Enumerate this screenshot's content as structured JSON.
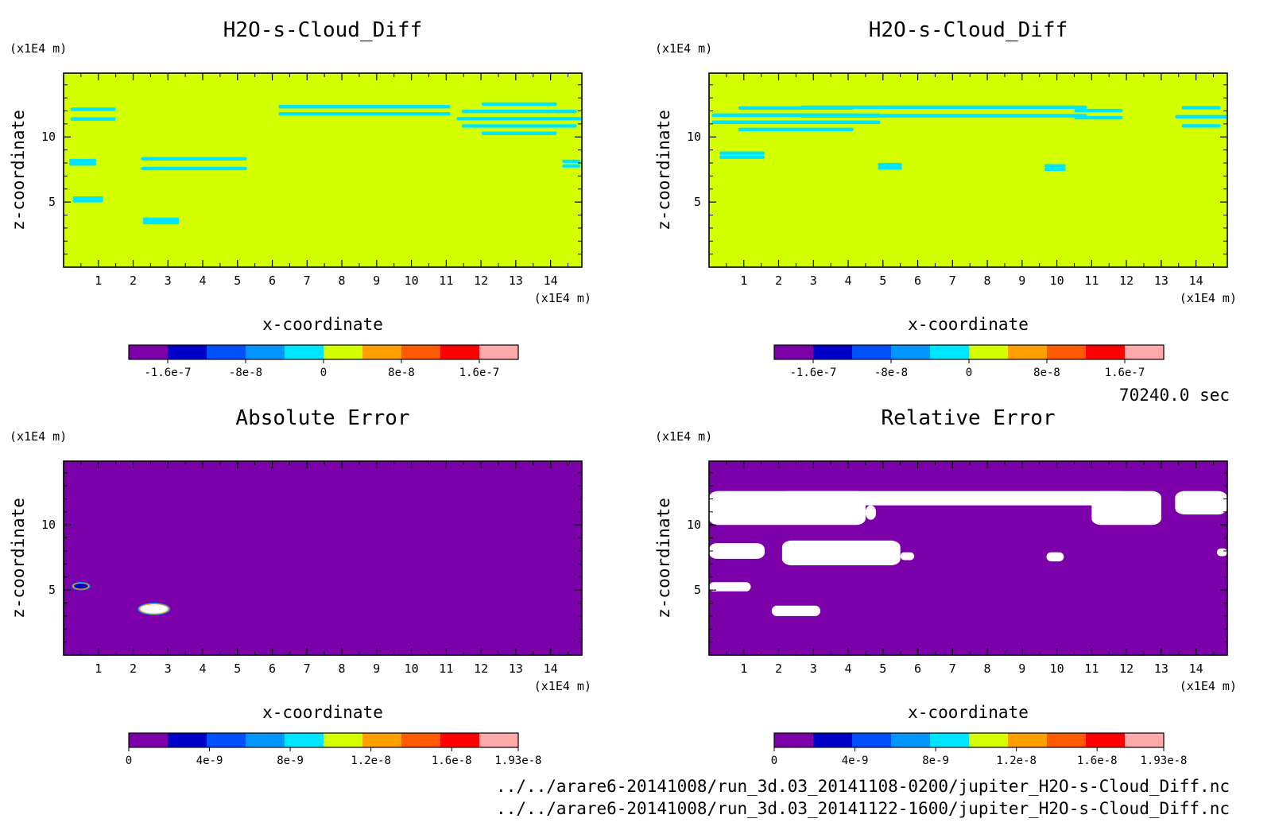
{
  "figure": {
    "time_label": "70240.0 sec",
    "files": [
      "../../arare6-20141008/run_3d.03_20141108-0200/jupiter_H2O-s-Cloud_Diff.nc",
      "../../arare6-20141008/run_3d.03_20141122-1600/jupiter_H2O-s-Cloud_Diff.nc"
    ],
    "colors": {
      "background_fill_top": "#d4ff00",
      "contour_lines": "#00e5ff",
      "error_background": "#7b00aa",
      "error_patch": "#ffffff"
    }
  },
  "chart_data": [
    {
      "type": "heatmap",
      "panel": "top-left",
      "title": "H2O-s-Cloud_Diff",
      "xlabel": "x-coordinate",
      "ylabel": "z-coordinate",
      "x_unit": "(x1E4 m)",
      "y_unit": "(x1E4 m)",
      "x_ticks": [
        "1",
        "2",
        "3",
        "4",
        "5",
        "6",
        "7",
        "8",
        "9",
        "10",
        "11",
        "12",
        "13",
        "14"
      ],
      "y_ticks": [
        "5",
        "10"
      ],
      "xlim": [
        0,
        14.9
      ],
      "ylim": [
        0,
        14.9
      ],
      "background_value": 0,
      "features": [
        {
          "x": [
            0.1,
            1.6
          ],
          "z": [
            11.0,
            12.5
          ]
        },
        {
          "x": [
            0.1,
            1.0
          ],
          "z": [
            7.8,
            8.3
          ]
        },
        {
          "x": [
            0.2,
            1.2
          ],
          "z": [
            5.0,
            5.4
          ]
        },
        {
          "x": [
            2.0,
            5.5
          ],
          "z": [
            7.2,
            8.7
          ]
        },
        {
          "x": [
            2.2,
            3.4
          ],
          "z": [
            3.3,
            3.8
          ]
        },
        {
          "x": [
            5.8,
            11.5
          ],
          "z": [
            11.5,
            12.6
          ]
        },
        {
          "x": [
            11.3,
            14.9
          ],
          "z": [
            10.0,
            12.8
          ]
        },
        {
          "x": [
            14.3,
            14.9
          ],
          "z": [
            7.6,
            8.3
          ]
        }
      ],
      "colorbar": {
        "levels": 10,
        "colors": [
          "#7b00aa",
          "#0000c8",
          "#0050ff",
          "#0096ff",
          "#00e5ff",
          "#d4ff00",
          "#ffa000",
          "#ff5a00",
          "#ff0000",
          "#ffaaaa"
        ],
        "tick_labels": [
          "-1.6e-7",
          "-8e-8",
          "0",
          "8e-8",
          "1.6e-7"
        ],
        "tick_values": [
          -1.6e-07,
          -8e-08,
          0,
          8e-08,
          1.6e-07
        ],
        "range": [
          -2e-07,
          2e-07
        ]
      }
    },
    {
      "type": "heatmap",
      "panel": "top-right",
      "title": "H2O-s-Cloud_Diff",
      "xlabel": "x-coordinate",
      "ylabel": "z-coordinate",
      "x_unit": "(x1E4 m)",
      "y_unit": "(x1E4 m)",
      "x_ticks": [
        "1",
        "2",
        "3",
        "4",
        "5",
        "6",
        "7",
        "8",
        "9",
        "10",
        "11",
        "12",
        "13",
        "14"
      ],
      "y_ticks": [
        "5",
        "10"
      ],
      "xlim": [
        0,
        14.9
      ],
      "ylim": [
        0,
        14.9
      ],
      "background_value": 0,
      "features": [
        {
          "x": [
            0.0,
            5.0
          ],
          "z": [
            10.3,
            12.5
          ]
        },
        {
          "x": [
            2.0,
            11.5
          ],
          "z": [
            11.3,
            12.6
          ]
        },
        {
          "x": [
            10.4,
            12.0
          ],
          "z": [
            11.2,
            12.3
          ]
        },
        {
          "x": [
            0.2,
            1.7
          ],
          "z": [
            8.3,
            8.9
          ]
        },
        {
          "x": [
            4.8,
            5.6
          ],
          "z": [
            7.5,
            8.0
          ]
        },
        {
          "x": [
            9.6,
            10.3
          ],
          "z": [
            7.4,
            7.9
          ]
        },
        {
          "x": [
            13.4,
            14.9
          ],
          "z": [
            10.5,
            12.6
          ]
        }
      ],
      "colorbar": {
        "levels": 10,
        "colors": [
          "#7b00aa",
          "#0000c8",
          "#0050ff",
          "#0096ff",
          "#00e5ff",
          "#d4ff00",
          "#ffa000",
          "#ff5a00",
          "#ff0000",
          "#ffaaaa"
        ],
        "tick_labels": [
          "-1.6e-7",
          "-8e-8",
          "0",
          "8e-8",
          "1.6e-7"
        ],
        "tick_values": [
          -1.6e-07,
          -8e-08,
          0,
          8e-08,
          1.6e-07
        ],
        "range": [
          -2e-07,
          2e-07
        ]
      }
    },
    {
      "type": "heatmap",
      "panel": "bottom-left",
      "title": "Absolute Error",
      "xlabel": "x-coordinate",
      "ylabel": "z-coordinate",
      "x_unit": "(x1E4 m)",
      "y_unit": "(x1E4 m)",
      "x_ticks": [
        "1",
        "2",
        "3",
        "4",
        "5",
        "6",
        "7",
        "8",
        "9",
        "10",
        "11",
        "12",
        "13",
        "14"
      ],
      "y_ticks": [
        "5",
        "10"
      ],
      "xlim": [
        0,
        14.9
      ],
      "ylim": [
        0,
        14.9
      ],
      "background_value": 0,
      "features": [
        {
          "x": [
            0.3,
            0.7
          ],
          "z": [
            5.1,
            5.5
          ],
          "value": 8e-09
        },
        {
          "x": [
            2.2,
            3.0
          ],
          "z": [
            3.2,
            3.9
          ],
          "value": 1.93e-08
        }
      ],
      "colorbar": {
        "levels": 10,
        "colors": [
          "#7b00aa",
          "#0000c8",
          "#0050ff",
          "#0096ff",
          "#00e5ff",
          "#d4ff00",
          "#ffa000",
          "#ff5a00",
          "#ff0000",
          "#ffaaaa"
        ],
        "tick_labels": [
          "0",
          "4e-9",
          "8e-9",
          "1.2e-8",
          "1.6e-8",
          "1.93e-8"
        ],
        "tick_values": [
          0,
          4e-09,
          8e-09,
          1.2e-08,
          1.6e-08,
          1.93e-08
        ],
        "range": [
          0,
          1.93e-08
        ]
      }
    },
    {
      "type": "heatmap",
      "panel": "bottom-right",
      "title": "Relative Error",
      "xlabel": "x-coordinate",
      "ylabel": "z-coordinate",
      "x_unit": "(x1E4 m)",
      "y_unit": "(x1E4 m)",
      "x_ticks": [
        "1",
        "2",
        "3",
        "4",
        "5",
        "6",
        "7",
        "8",
        "9",
        "10",
        "11",
        "12",
        "13",
        "14"
      ],
      "y_ticks": [
        "5",
        "10"
      ],
      "xlim": [
        0,
        14.9
      ],
      "ylim": [
        0,
        14.9
      ],
      "background_value": 0,
      "features": [
        {
          "x": [
            0.0,
            4.5
          ],
          "z": [
            10.0,
            12.6
          ]
        },
        {
          "x": [
            2.0,
            12.0
          ],
          "z": [
            11.5,
            12.6
          ]
        },
        {
          "x": [
            4.5,
            4.8
          ],
          "z": [
            10.4,
            11.5
          ]
        },
        {
          "x": [
            11.0,
            13.0
          ],
          "z": [
            10.0,
            12.6
          ]
        },
        {
          "x": [
            13.4,
            14.9
          ],
          "z": [
            10.8,
            12.6
          ]
        },
        {
          "x": [
            0.0,
            1.6
          ],
          "z": [
            7.4,
            8.6
          ]
        },
        {
          "x": [
            2.1,
            5.5
          ],
          "z": [
            6.9,
            8.8
          ]
        },
        {
          "x": [
            5.5,
            5.9
          ],
          "z": [
            7.3,
            7.9
          ]
        },
        {
          "x": [
            9.7,
            10.2
          ],
          "z": [
            7.2,
            7.9
          ]
        },
        {
          "x": [
            14.6,
            14.9
          ],
          "z": [
            7.6,
            8.2
          ]
        },
        {
          "x": [
            0.0,
            1.2
          ],
          "z": [
            4.9,
            5.6
          ]
        },
        {
          "x": [
            1.8,
            3.2
          ],
          "z": [
            3.0,
            3.8
          ]
        }
      ],
      "colorbar": {
        "levels": 10,
        "colors": [
          "#7b00aa",
          "#0000c8",
          "#0050ff",
          "#0096ff",
          "#00e5ff",
          "#d4ff00",
          "#ffa000",
          "#ff5a00",
          "#ff0000",
          "#ffaaaa"
        ],
        "tick_labels": [
          "0",
          "4e-9",
          "8e-9",
          "1.2e-8",
          "1.6e-8",
          "1.93e-8"
        ],
        "tick_values": [
          0,
          4e-09,
          8e-09,
          1.2e-08,
          1.6e-08,
          1.93e-08
        ],
        "range": [
          0,
          1.93e-08
        ]
      }
    }
  ]
}
